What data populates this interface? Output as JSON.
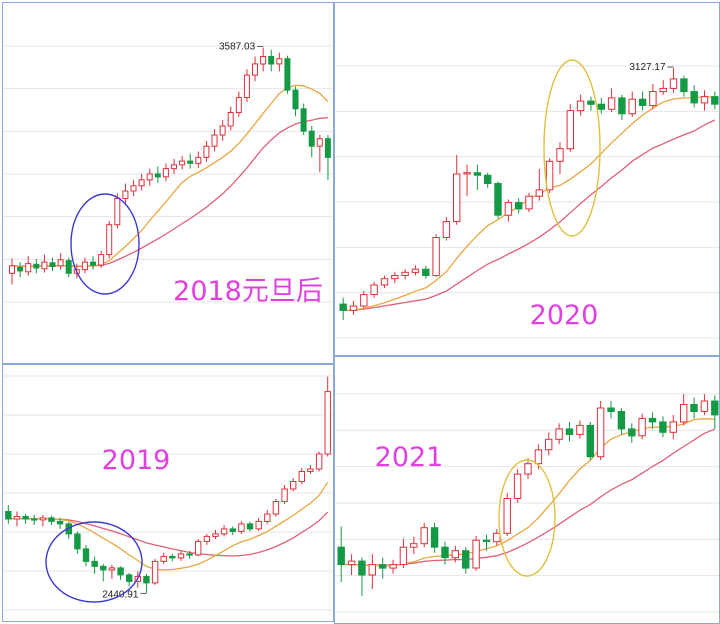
{
  "colors": {
    "up": "#e0303a",
    "down": "#149a45",
    "ma_fast": "#e8a640",
    "ma_slow": "#e0607a",
    "grid": "#e6e6ea",
    "border": "#8aa8d8",
    "label": "#e040e0",
    "circle_blue": "#3a3ad0",
    "circle_yellow": "#e0c040"
  },
  "chart_data": [
    {
      "id": "p2018",
      "type": "candlestick",
      "label": "2018元旦后",
      "high_label": "3587.03",
      "low_label": "",
      "candles": [
        {
          "o": 3285,
          "c": 3295,
          "h": 3305,
          "l": 3270
        },
        {
          "o": 3293,
          "c": 3288,
          "h": 3300,
          "l": 3280
        },
        {
          "o": 3287,
          "c": 3298,
          "h": 3308,
          "l": 3282
        },
        {
          "o": 3297,
          "c": 3292,
          "h": 3304,
          "l": 3285
        },
        {
          "o": 3291,
          "c": 3300,
          "h": 3310,
          "l": 3286
        },
        {
          "o": 3299,
          "c": 3294,
          "h": 3306,
          "l": 3288
        },
        {
          "o": 3295,
          "c": 3303,
          "h": 3312,
          "l": 3290
        },
        {
          "o": 3302,
          "c": 3285,
          "h": 3306,
          "l": 3280
        },
        {
          "o": 3285,
          "c": 3290,
          "h": 3298,
          "l": 3278
        },
        {
          "o": 3290,
          "c": 3300,
          "h": 3306,
          "l": 3285
        },
        {
          "o": 3300,
          "c": 3296,
          "h": 3308,
          "l": 3290
        },
        {
          "o": 3296,
          "c": 3310,
          "h": 3315,
          "l": 3292
        },
        {
          "o": 3310,
          "c": 3350,
          "h": 3355,
          "l": 3305
        },
        {
          "o": 3350,
          "c": 3385,
          "h": 3392,
          "l": 3345
        },
        {
          "o": 3385,
          "c": 3395,
          "h": 3405,
          "l": 3378
        },
        {
          "o": 3395,
          "c": 3402,
          "h": 3410,
          "l": 3388
        },
        {
          "o": 3402,
          "c": 3410,
          "h": 3418,
          "l": 3396
        },
        {
          "o": 3410,
          "c": 3418,
          "h": 3425,
          "l": 3402
        },
        {
          "o": 3418,
          "c": 3414,
          "h": 3428,
          "l": 3406
        },
        {
          "o": 3414,
          "c": 3425,
          "h": 3432,
          "l": 3408
        },
        {
          "o": 3425,
          "c": 3430,
          "h": 3438,
          "l": 3418
        },
        {
          "o": 3430,
          "c": 3435,
          "h": 3442,
          "l": 3424
        },
        {
          "o": 3435,
          "c": 3432,
          "h": 3445,
          "l": 3425
        },
        {
          "o": 3432,
          "c": 3440,
          "h": 3448,
          "l": 3426
        },
        {
          "o": 3440,
          "c": 3455,
          "h": 3462,
          "l": 3434
        },
        {
          "o": 3455,
          "c": 3470,
          "h": 3478,
          "l": 3448
        },
        {
          "o": 3470,
          "c": 3482,
          "h": 3490,
          "l": 3462
        },
        {
          "o": 3482,
          "c": 3500,
          "h": 3508,
          "l": 3476
        },
        {
          "o": 3500,
          "c": 3520,
          "h": 3528,
          "l": 3494
        },
        {
          "o": 3520,
          "c": 3550,
          "h": 3558,
          "l": 3514
        },
        {
          "o": 3550,
          "c": 3565,
          "h": 3575,
          "l": 3542
        },
        {
          "o": 3565,
          "c": 3575,
          "h": 3587,
          "l": 3555
        },
        {
          "o": 3575,
          "c": 3565,
          "h": 3584,
          "l": 3555
        },
        {
          "o": 3565,
          "c": 3572,
          "h": 3580,
          "l": 3555
        },
        {
          "o": 3572,
          "c": 3530,
          "h": 3576,
          "l": 3525
        },
        {
          "o": 3530,
          "c": 3505,
          "h": 3535,
          "l": 3495
        },
        {
          "o": 3505,
          "c": 3475,
          "h": 3512,
          "l": 3470
        },
        {
          "o": 3475,
          "c": 3455,
          "h": 3482,
          "l": 3440
        },
        {
          "o": 3455,
          "c": 3465,
          "h": 3470,
          "l": 3420
        },
        {
          "o": 3465,
          "c": 3440,
          "h": 3470,
          "l": 3410
        }
      ]
    },
    {
      "id": "p2020",
      "type": "candlestick",
      "label": "2020",
      "high_label": "3127.17",
      "low_label": "",
      "candles": [
        {
          "o": 2755,
          "c": 2745,
          "h": 2765,
          "l": 2730
        },
        {
          "o": 2745,
          "c": 2752,
          "h": 2760,
          "l": 2738
        },
        {
          "o": 2752,
          "c": 2770,
          "h": 2776,
          "l": 2748
        },
        {
          "o": 2770,
          "c": 2785,
          "h": 2790,
          "l": 2765
        },
        {
          "o": 2785,
          "c": 2795,
          "h": 2800,
          "l": 2780
        },
        {
          "o": 2795,
          "c": 2800,
          "h": 2806,
          "l": 2788
        },
        {
          "o": 2800,
          "c": 2805,
          "h": 2810,
          "l": 2794
        },
        {
          "o": 2805,
          "c": 2810,
          "h": 2816,
          "l": 2800
        },
        {
          "o": 2810,
          "c": 2800,
          "h": 2815,
          "l": 2795
        },
        {
          "o": 2800,
          "c": 2860,
          "h": 2865,
          "l": 2798
        },
        {
          "o": 2860,
          "c": 2885,
          "h": 2892,
          "l": 2855
        },
        {
          "o": 2885,
          "c": 2960,
          "h": 2990,
          "l": 2880
        },
        {
          "o": 2960,
          "c": 2962,
          "h": 2975,
          "l": 2925
        },
        {
          "o": 2962,
          "c": 2958,
          "h": 2975,
          "l": 2935
        },
        {
          "o": 2958,
          "c": 2945,
          "h": 2962,
          "l": 2938
        },
        {
          "o": 2945,
          "c": 2895,
          "h": 2948,
          "l": 2890
        },
        {
          "o": 2895,
          "c": 2915,
          "h": 2920,
          "l": 2885
        },
        {
          "o": 2915,
          "c": 2905,
          "h": 2922,
          "l": 2898
        },
        {
          "o": 2905,
          "c": 2925,
          "h": 2930,
          "l": 2900
        },
        {
          "o": 2925,
          "c": 2935,
          "h": 2968,
          "l": 2918
        },
        {
          "o": 2935,
          "c": 2980,
          "h": 2985,
          "l": 2930
        },
        {
          "o": 2980,
          "c": 3000,
          "h": 3010,
          "l": 2960
        },
        {
          "o": 3000,
          "c": 3060,
          "h": 3070,
          "l": 2995
        },
        {
          "o": 3060,
          "c": 3075,
          "h": 3085,
          "l": 3052
        },
        {
          "o": 3075,
          "c": 3070,
          "h": 3082,
          "l": 3060
        },
        {
          "o": 3070,
          "c": 3062,
          "h": 3080,
          "l": 3055
        },
        {
          "o": 3062,
          "c": 3080,
          "h": 3095,
          "l": 3058
        },
        {
          "o": 3080,
          "c": 3055,
          "h": 3085,
          "l": 3045
        },
        {
          "o": 3055,
          "c": 3078,
          "h": 3090,
          "l": 3050
        },
        {
          "o": 3078,
          "c": 3068,
          "h": 3090,
          "l": 3060
        },
        {
          "o": 3068,
          "c": 3090,
          "h": 3102,
          "l": 3062
        },
        {
          "o": 3090,
          "c": 3095,
          "h": 3108,
          "l": 3085
        },
        {
          "o": 3095,
          "c": 3110,
          "h": 3127,
          "l": 3088
        },
        {
          "o": 3110,
          "c": 3090,
          "h": 3115,
          "l": 3082
        },
        {
          "o": 3090,
          "c": 3072,
          "h": 3100,
          "l": 3065
        },
        {
          "o": 3072,
          "c": 3082,
          "h": 3092,
          "l": 3060
        },
        {
          "o": 3082,
          "c": 3070,
          "h": 3090,
          "l": 3062
        }
      ]
    },
    {
      "id": "p2019",
      "type": "candlestick",
      "label": "2019",
      "high_label": "",
      "low_label": "2440.91",
      "candles": [
        {
          "o": 2605,
          "c": 2590,
          "h": 2618,
          "l": 2580
        },
        {
          "o": 2590,
          "c": 2595,
          "h": 2605,
          "l": 2575
        },
        {
          "o": 2595,
          "c": 2590,
          "h": 2600,
          "l": 2580
        },
        {
          "o": 2590,
          "c": 2588,
          "h": 2598,
          "l": 2578
        },
        {
          "o": 2588,
          "c": 2592,
          "h": 2598,
          "l": 2575
        },
        {
          "o": 2592,
          "c": 2585,
          "h": 2596,
          "l": 2578
        },
        {
          "o": 2585,
          "c": 2580,
          "h": 2592,
          "l": 2570
        },
        {
          "o": 2580,
          "c": 2560,
          "h": 2584,
          "l": 2550
        },
        {
          "o": 2560,
          "c": 2530,
          "h": 2565,
          "l": 2520
        },
        {
          "o": 2530,
          "c": 2505,
          "h": 2538,
          "l": 2495
        },
        {
          "o": 2505,
          "c": 2495,
          "h": 2515,
          "l": 2480
        },
        {
          "o": 2495,
          "c": 2488,
          "h": 2500,
          "l": 2465
        },
        {
          "o": 2488,
          "c": 2492,
          "h": 2498,
          "l": 2470
        },
        {
          "o": 2492,
          "c": 2478,
          "h": 2495,
          "l": 2468
        },
        {
          "o": 2478,
          "c": 2465,
          "h": 2482,
          "l": 2455
        },
        {
          "o": 2465,
          "c": 2475,
          "h": 2485,
          "l": 2452
        },
        {
          "o": 2475,
          "c": 2462,
          "h": 2480,
          "l": 2441
        },
        {
          "o": 2462,
          "c": 2505,
          "h": 2510,
          "l": 2458
        },
        {
          "o": 2505,
          "c": 2515,
          "h": 2522,
          "l": 2500
        },
        {
          "o": 2515,
          "c": 2512,
          "h": 2520,
          "l": 2505
        },
        {
          "o": 2512,
          "c": 2520,
          "h": 2526,
          "l": 2506
        },
        {
          "o": 2520,
          "c": 2518,
          "h": 2526,
          "l": 2510
        },
        {
          "o": 2518,
          "c": 2545,
          "h": 2550,
          "l": 2515
        },
        {
          "o": 2545,
          "c": 2555,
          "h": 2560,
          "l": 2538
        },
        {
          "o": 2555,
          "c": 2560,
          "h": 2568,
          "l": 2550
        },
        {
          "o": 2560,
          "c": 2570,
          "h": 2578,
          "l": 2555
        },
        {
          "o": 2570,
          "c": 2565,
          "h": 2575,
          "l": 2558
        },
        {
          "o": 2565,
          "c": 2580,
          "h": 2586,
          "l": 2560
        },
        {
          "o": 2580,
          "c": 2570,
          "h": 2585,
          "l": 2565
        },
        {
          "o": 2570,
          "c": 2585,
          "h": 2592,
          "l": 2566
        },
        {
          "o": 2585,
          "c": 2600,
          "h": 2608,
          "l": 2580
        },
        {
          "o": 2600,
          "c": 2625,
          "h": 2630,
          "l": 2595
        },
        {
          "o": 2625,
          "c": 2650,
          "h": 2658,
          "l": 2620
        },
        {
          "o": 2650,
          "c": 2665,
          "h": 2672,
          "l": 2645
        },
        {
          "o": 2665,
          "c": 2685,
          "h": 2692,
          "l": 2660
        },
        {
          "o": 2685,
          "c": 2690,
          "h": 2698,
          "l": 2680
        },
        {
          "o": 2690,
          "c": 2720,
          "h": 2725,
          "l": 2685
        },
        {
          "o": 2720,
          "c": 2845,
          "h": 2875,
          "l": 2715
        }
      ]
    },
    {
      "id": "p2021",
      "type": "candlestick",
      "label": "2021",
      "high_label": "",
      "low_label": "",
      "candles": [
        {
          "o": 3470,
          "c": 3445,
          "h": 3500,
          "l": 3420
        },
        {
          "o": 3445,
          "c": 3450,
          "h": 3460,
          "l": 3430
        },
        {
          "o": 3450,
          "c": 3430,
          "h": 3455,
          "l": 3400
        },
        {
          "o": 3430,
          "c": 3445,
          "h": 3460,
          "l": 3410
        },
        {
          "o": 3445,
          "c": 3440,
          "h": 3455,
          "l": 3425
        },
        {
          "o": 3440,
          "c": 3445,
          "h": 3452,
          "l": 3432
        },
        {
          "o": 3445,
          "c": 3470,
          "h": 3482,
          "l": 3440
        },
        {
          "o": 3470,
          "c": 3475,
          "h": 3485,
          "l": 3460
        },
        {
          "o": 3475,
          "c": 3498,
          "h": 3505,
          "l": 3470
        },
        {
          "o": 3498,
          "c": 3470,
          "h": 3505,
          "l": 3462
        },
        {
          "o": 3470,
          "c": 3455,
          "h": 3478,
          "l": 3445
        },
        {
          "o": 3455,
          "c": 3465,
          "h": 3472,
          "l": 3448
        },
        {
          "o": 3465,
          "c": 3440,
          "h": 3470,
          "l": 3432
        },
        {
          "o": 3440,
          "c": 3480,
          "h": 3486,
          "l": 3436
        },
        {
          "o": 3480,
          "c": 3478,
          "h": 3488,
          "l": 3465
        },
        {
          "o": 3478,
          "c": 3490,
          "h": 3496,
          "l": 3472
        },
        {
          "o": 3490,
          "c": 3540,
          "h": 3548,
          "l": 3486
        },
        {
          "o": 3540,
          "c": 3575,
          "h": 3582,
          "l": 3534
        },
        {
          "o": 3575,
          "c": 3590,
          "h": 3598,
          "l": 3568
        },
        {
          "o": 3590,
          "c": 3610,
          "h": 3618,
          "l": 3582
        },
        {
          "o": 3610,
          "c": 3625,
          "h": 3635,
          "l": 3602
        },
        {
          "o": 3625,
          "c": 3640,
          "h": 3648,
          "l": 3618
        },
        {
          "o": 3640,
          "c": 3632,
          "h": 3650,
          "l": 3622
        },
        {
          "o": 3632,
          "c": 3645,
          "h": 3652,
          "l": 3626
        },
        {
          "o": 3645,
          "c": 3600,
          "h": 3650,
          "l": 3595
        },
        {
          "o": 3600,
          "c": 3670,
          "h": 3680,
          "l": 3595
        },
        {
          "o": 3670,
          "c": 3665,
          "h": 3680,
          "l": 3655
        },
        {
          "o": 3665,
          "c": 3640,
          "h": 3670,
          "l": 3632
        },
        {
          "o": 3640,
          "c": 3630,
          "h": 3648,
          "l": 3620
        },
        {
          "o": 3630,
          "c": 3655,
          "h": 3662,
          "l": 3625
        },
        {
          "o": 3655,
          "c": 3650,
          "h": 3664,
          "l": 3640
        },
        {
          "o": 3650,
          "c": 3635,
          "h": 3658,
          "l": 3628
        },
        {
          "o": 3635,
          "c": 3650,
          "h": 3660,
          "l": 3625
        },
        {
          "o": 3650,
          "c": 3675,
          "h": 3690,
          "l": 3645
        },
        {
          "o": 3675,
          "c": 3665,
          "h": 3685,
          "l": 3655
        },
        {
          "o": 3665,
          "c": 3680,
          "h": 3690,
          "l": 3660
        },
        {
          "o": 3680,
          "c": 3660,
          "h": 3688,
          "l": 3640
        }
      ]
    }
  ]
}
